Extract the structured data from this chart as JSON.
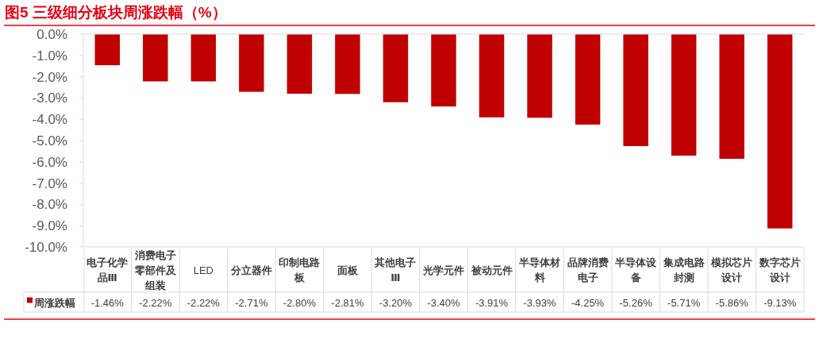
{
  "chart_data": {
    "type": "bar",
    "title": "图5  三级细分板块周涨跌幅（%）",
    "categories": [
      "电子化学品Ⅲ",
      "消费电子零部件及组装",
      "LED",
      "分立器件",
      "印制电路板",
      "面板",
      "其他电子Ⅲ",
      "光学元件",
      "被动元件",
      "半导体材料",
      "品牌消费电子",
      "半导体设备",
      "集成电路封测",
      "模拟芯片设计",
      "数字芯片设计"
    ],
    "series": [
      {
        "name": "周涨跌幅",
        "color": "#c00000",
        "values": [
          -1.46,
          -2.22,
          -2.22,
          -2.71,
          -2.8,
          -2.81,
          -3.2,
          -3.4,
          -3.91,
          -3.93,
          -4.25,
          -5.26,
          -5.71,
          -5.86,
          -9.13
        ],
        "value_labels": [
          "-1.46%",
          "-2.22%",
          "-2.22%",
          "-2.71%",
          "-2.80%",
          "-2.81%",
          "-3.20%",
          "-3.40%",
          "-3.91%",
          "-3.93%",
          "-4.25%",
          "-5.26%",
          "-5.71%",
          "-5.86%",
          "-9.13%"
        ]
      }
    ],
    "ylim": [
      -10,
      0
    ],
    "yticks": [
      {
        "value": 0,
        "label": "0.0%"
      },
      {
        "value": -1,
        "label": "-1.0%"
      },
      {
        "value": -2,
        "label": "-2.0%"
      },
      {
        "value": -3,
        "label": "-3.0%"
      },
      {
        "value": -4,
        "label": "-4.0%"
      },
      {
        "value": -5,
        "label": "-5.0%"
      },
      {
        "value": -6,
        "label": "-6.0%"
      },
      {
        "value": -7,
        "label": "-7.0%"
      },
      {
        "value": -8,
        "label": "-8.0%"
      },
      {
        "value": -9,
        "label": "-9.0%"
      },
      {
        "value": -10,
        "label": "-10.0%"
      }
    ],
    "grid": false,
    "legend": "bottom left",
    "data_labels": true
  }
}
